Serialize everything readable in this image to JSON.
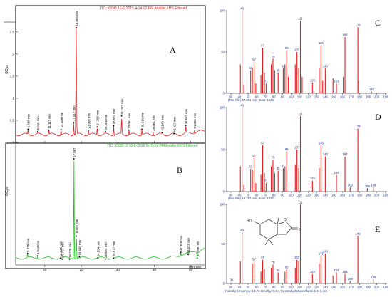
{
  "figure": {
    "panel_labels": [
      "A",
      "B",
      "C",
      "D",
      "E"
    ]
  },
  "chart_data": [
    {
      "id": "A",
      "type": "line",
      "header": "TIC: K33O 10-6-2015 4-14-02 PM Analite.XMS  Filtered",
      "ylabel": "GCps",
      "y_ticks": [
        "0",
        "0.5",
        "1",
        "1.5",
        "2",
        "2.5"
      ],
      "ylim": [
        0,
        2.9
      ],
      "xlim": [
        2,
        54
      ],
      "x_ticks": [
        10,
        20,
        30,
        40,
        50
      ],
      "color": "#e02020",
      "peaks": [
        {
          "label": "5.386 min",
          "x": 5.386,
          "y": 0.3
        },
        {
          "label": "8.053 min",
          "x": 8.053,
          "y": 0.25
        },
        {
          "label": "11.117 min",
          "x": 11.117,
          "y": 0.28
        },
        {
          "label": "14.438 min",
          "x": 14.438,
          "y": 0.3
        },
        {
          "label": "17.917 min",
          "x": 17.917,
          "y": 0.45
        },
        {
          "label": "18.606 min",
          "x": 18.606,
          "y": 2.6
        },
        {
          "label": "21.966 min",
          "x": 21.966,
          "y": 0.28
        },
        {
          "label": "24.359 min",
          "x": 24.359,
          "y": 0.35
        },
        {
          "label": "26.605 min",
          "x": 26.605,
          "y": 0.25
        },
        {
          "label": "28.881 min",
          "x": 28.881,
          "y": 0.38
        },
        {
          "label": "31.062 min",
          "x": 31.062,
          "y": 0.6
        },
        {
          "label": "33.061 min",
          "x": 33.061,
          "y": 0.28
        },
        {
          "label": "36.614 min",
          "x": 36.614,
          "y": 0.3
        },
        {
          "label": "39.681 min",
          "x": 39.681,
          "y": 0.23
        },
        {
          "label": "42.149 min",
          "x": 42.149,
          "y": 0.23
        },
        {
          "label": "45.429 min",
          "x": 45.429,
          "y": 0.2
        },
        {
          "label": "48.662 min",
          "x": 48.662,
          "y": 0.38
        },
        {
          "label": "51.066 min",
          "x": 51.066,
          "y": 0.28
        }
      ]
    },
    {
      "id": "B",
      "type": "line",
      "header": "TIC: K33O_2 10-6-2015 5-15-57 PM Analite.XMS  Filtered",
      "ylabel": "GCps",
      "xlabel": "Minutes",
      "xlim": [
        2,
        54
      ],
      "x_ticks": [
        10,
        20,
        30,
        40,
        50
      ],
      "ylim": [
        0,
        1.0
      ],
      "color": "#18c018",
      "peaks": [
        {
          "label": "5.278 min",
          "x": 5.278,
          "y": 0.1
        },
        {
          "label": "8.048 min",
          "x": 8.048,
          "y": 0.08
        },
        {
          "label": "14.245 min",
          "x": 14.245,
          "y": 0.06
        },
        {
          "label": "14.751 min",
          "x": 14.751,
          "y": 0.05
        },
        {
          "label": "16.778 min",
          "x": 16.778,
          "y": 0.05
        },
        {
          "label": "17.987",
          "x": 17.987,
          "y": 0.92
        },
        {
          "label": "18.666 min",
          "x": 18.666,
          "y": 0.25
        },
        {
          "label": "19.496 min",
          "x": 19.496,
          "y": 0.07
        },
        {
          "label": "24.554 min",
          "x": 24.554,
          "y": 0.06
        },
        {
          "label": "26.604 min",
          "x": 26.604,
          "y": 0.05
        },
        {
          "label": "28.877 min",
          "x": 28.877,
          "y": 0.06
        },
        {
          "label": "47.309 min",
          "x": 47.309,
          "y": 0.11
        },
        {
          "label": "49.319 min",
          "x": 49.319,
          "y": 0.09
        },
        {
          "label": "51.766 min",
          "x": 51.766,
          "y": 0.06
        }
      ]
    },
    {
      "id": "C",
      "type": "bar",
      "caption": "(Text File) 17.891 min, Scan: 1525",
      "xlim": [
        25,
        212
      ],
      "ylim": [
        0,
        100
      ],
      "x_ticks": [
        30,
        40,
        50,
        60,
        70,
        80,
        90,
        100,
        110,
        120,
        130,
        140,
        150,
        160,
        170,
        180,
        190,
        200,
        210
      ],
      "y_ticks": [
        0,
        50,
        100
      ],
      "color": "#e02020",
      "bars": [
        {
          "x": 41,
          "y": 35
        },
        {
          "x": 43,
          "y": 100,
          "label": "43"
        },
        {
          "x": 45,
          "y": 10
        },
        {
          "x": 53,
          "y": 28,
          "label": "53"
        },
        {
          "x": 55,
          "y": 30
        },
        {
          "x": 57,
          "y": 38,
          "label": "57"
        },
        {
          "x": 59,
          "y": 12
        },
        {
          "x": 65,
          "y": 22
        },
        {
          "x": 67,
          "y": 55,
          "label": "67"
        },
        {
          "x": 69,
          "y": 25
        },
        {
          "x": 71,
          "y": 12,
          "label": "71"
        },
        {
          "x": 77,
          "y": 35
        },
        {
          "x": 79,
          "y": 42,
          "label": "79"
        },
        {
          "x": 81,
          "y": 28
        },
        {
          "x": 85,
          "y": 25,
          "label": "85"
        },
        {
          "x": 91,
          "y": 30,
          "label": "91"
        },
        {
          "x": 93,
          "y": 35
        },
        {
          "x": 95,
          "y": 52,
          "label": "95"
        },
        {
          "x": 97,
          "y": 20
        },
        {
          "x": 105,
          "y": 35
        },
        {
          "x": 107,
          "y": 50,
          "label": "107"
        },
        {
          "x": 109,
          "y": 30
        },
        {
          "x": 111,
          "y": 88,
          "label": "111"
        },
        {
          "x": 113,
          "y": 20
        },
        {
          "x": 121,
          "y": 12
        },
        {
          "x": 125,
          "y": 13,
          "label": "125"
        },
        {
          "x": 133,
          "y": 30
        },
        {
          "x": 135,
          "y": 58,
          "label": "135"
        },
        {
          "x": 137,
          "y": 15
        },
        {
          "x": 140,
          "y": 30,
          "label": "140"
        },
        {
          "x": 149,
          "y": 18
        },
        {
          "x": 153,
          "y": 12,
          "label": "153"
        },
        {
          "x": 161,
          "y": 20
        },
        {
          "x": 163,
          "y": 68,
          "label": "163"
        },
        {
          "x": 178,
          "y": 80,
          "label": "178"
        },
        {
          "x": 179,
          "y": 15
        },
        {
          "x": 194,
          "y": 2,
          "label": "194"
        }
      ]
    },
    {
      "id": "D",
      "type": "bar",
      "caption": "(Text File) 18.797 min, Scan: 1622",
      "xlim": [
        25,
        212
      ],
      "ylim": [
        0,
        100
      ],
      "x_ticks": [
        30,
        40,
        50,
        60,
        70,
        80,
        90,
        100,
        110,
        120,
        130,
        140,
        150,
        160,
        170,
        180,
        190,
        200,
        210
      ],
      "y_ticks": [
        0,
        50,
        100
      ],
      "color": "#e02020",
      "bars": [
        {
          "x": 41,
          "y": 30
        },
        {
          "x": 43,
          "y": 100,
          "label": "43"
        },
        {
          "x": 45,
          "y": 8
        },
        {
          "x": 53,
          "y": 27,
          "label": "53"
        },
        {
          "x": 55,
          "y": 26
        },
        {
          "x": 57,
          "y": 40,
          "label": "57"
        },
        {
          "x": 59,
          "y": 10
        },
        {
          "x": 65,
          "y": 20
        },
        {
          "x": 67,
          "y": 55,
          "label": "67"
        },
        {
          "x": 69,
          "y": 22
        },
        {
          "x": 71,
          "y": 10,
          "label": "71"
        },
        {
          "x": 77,
          "y": 30
        },
        {
          "x": 79,
          "y": 38,
          "label": "79"
        },
        {
          "x": 81,
          "y": 22
        },
        {
          "x": 85,
          "y": 25,
          "label": "85"
        },
        {
          "x": 91,
          "y": 28,
          "label": "91"
        },
        {
          "x": 93,
          "y": 30
        },
        {
          "x": 95,
          "y": 48,
          "label": "95"
        },
        {
          "x": 105,
          "y": 32
        },
        {
          "x": 107,
          "y": 50,
          "label": "107"
        },
        {
          "x": 109,
          "y": 28
        },
        {
          "x": 111,
          "y": 90,
          "label": "111"
        },
        {
          "x": 121,
          "y": 10
        },
        {
          "x": 125,
          "y": 13,
          "label": "125"
        },
        {
          "x": 133,
          "y": 28
        },
        {
          "x": 135,
          "y": 55,
          "label": "135"
        },
        {
          "x": 140,
          "y": 42,
          "label": "140"
        },
        {
          "x": 153,
          "y": 20,
          "label": "153"
        },
        {
          "x": 163,
          "y": 42,
          "label": "163"
        },
        {
          "x": 169,
          "y": 5,
          "label": "169"
        },
        {
          "x": 178,
          "y": 75,
          "label": "178"
        },
        {
          "x": 189,
          "y": 4,
          "label": "189"
        },
        {
          "x": 196,
          "y": 5,
          "label": "196"
        }
      ]
    },
    {
      "id": "E",
      "type": "bar",
      "caption": "(mainlib) 6-Hydroxy-4,4,7a-trimethyl-5,6,7,7a-tetrahydrobenzofuran-2(4H)-one",
      "xlim": [
        25,
        212
      ],
      "ylim": [
        0,
        100
      ],
      "x_ticks": [
        30,
        40,
        50,
        60,
        70,
        80,
        90,
        100,
        110,
        120,
        130,
        140,
        150,
        160,
        170,
        180,
        190,
        200,
        210
      ],
      "y_ticks": [
        0,
        50,
        100
      ],
      "color": "#e02020",
      "structure_labels": {
        "hydroxyl": "HO",
        "ring_oxygen": "O",
        "carbonyl_oxygen": "O"
      },
      "bars": [
        {
          "x": 31,
          "y": 2,
          "label": "31"
        },
        {
          "x": 41,
          "y": 28
        },
        {
          "x": 43,
          "y": 65,
          "label": "43"
        },
        {
          "x": 55,
          "y": 25
        },
        {
          "x": 57,
          "y": 28,
          "label": "57"
        },
        {
          "x": 65,
          "y": 15
        },
        {
          "x": 67,
          "y": 30,
          "label": "67"
        },
        {
          "x": 69,
          "y": 18
        },
        {
          "x": 77,
          "y": 20
        },
        {
          "x": 79,
          "y": 24,
          "label": "79"
        },
        {
          "x": 85,
          "y": 14,
          "label": "85"
        },
        {
          "x": 93,
          "y": 15
        },
        {
          "x": 95,
          "y": 18,
          "label": "95"
        },
        {
          "x": 105,
          "y": 20
        },
        {
          "x": 107,
          "y": 30,
          "label": "107"
        },
        {
          "x": 109,
          "y": 28
        },
        {
          "x": 111,
          "y": 100,
          "label": "111"
        },
        {
          "x": 121,
          "y": 8
        },
        {
          "x": 125,
          "y": 12,
          "label": "125"
        },
        {
          "x": 133,
          "y": 25
        },
        {
          "x": 135,
          "y": 35,
          "label": "135"
        },
        {
          "x": 140,
          "y": 38,
          "label": "140"
        },
        {
          "x": 149,
          "y": 10
        },
        {
          "x": 153,
          "y": 14,
          "label": "153"
        },
        {
          "x": 163,
          "y": 12,
          "label": "163"
        },
        {
          "x": 169,
          "y": 3,
          "label": "169"
        },
        {
          "x": 178,
          "y": 60,
          "label": "178"
        },
        {
          "x": 196,
          "y": 5,
          "label": "196"
        }
      ]
    }
  ]
}
